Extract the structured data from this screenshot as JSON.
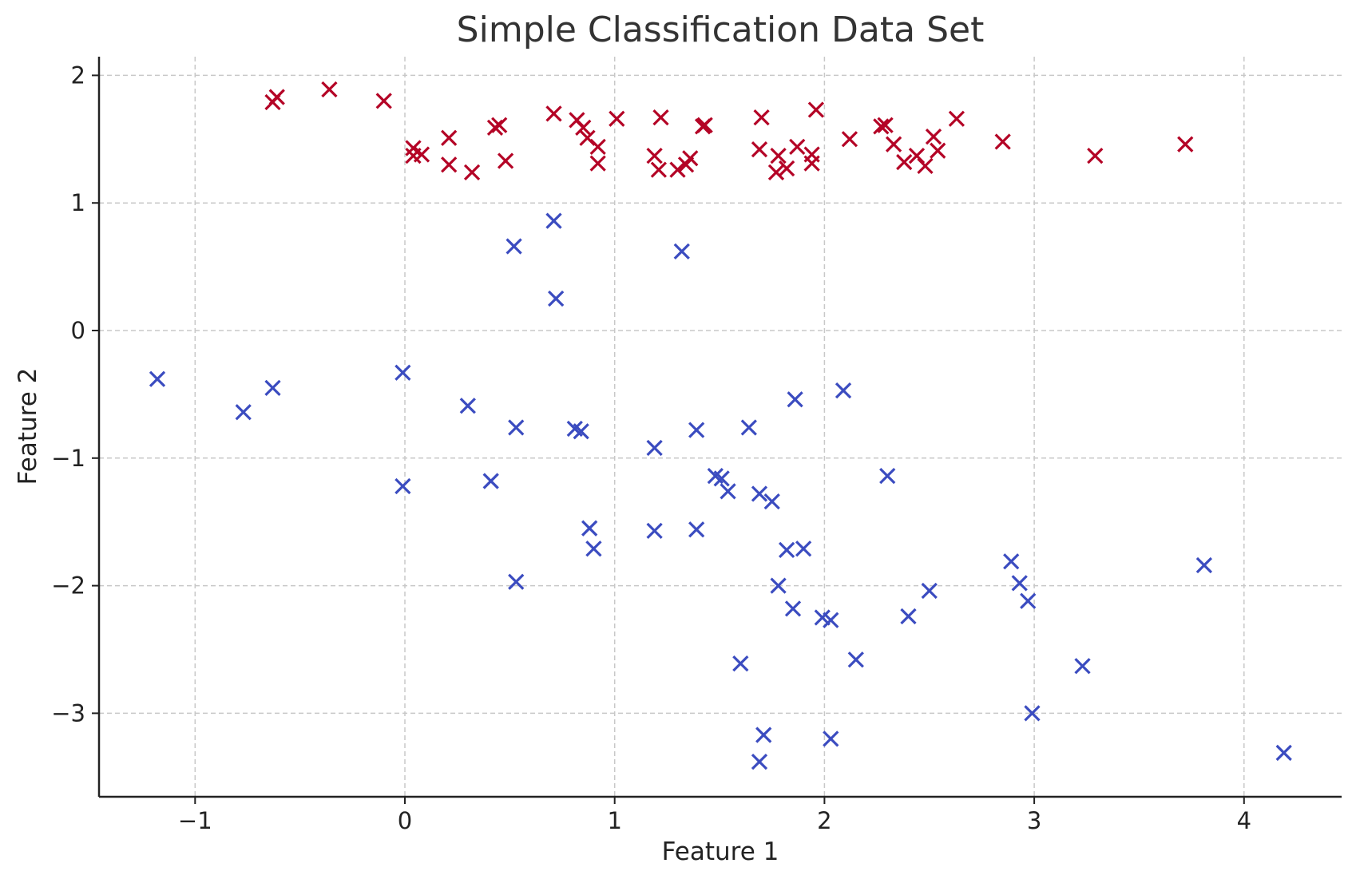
{
  "chart_data": {
    "type": "scatter",
    "title": "Simple Classification Data Set",
    "xlabel": "Feature 1",
    "ylabel": "Feature 2",
    "xlim": [
      -1.45,
      4.45
    ],
    "ylim": [
      -3.65,
      2.15
    ],
    "x_ticks": [
      -1,
      0,
      1,
      2,
      3,
      4
    ],
    "y_ticks": [
      -3,
      -2,
      -1,
      0,
      1,
      2
    ],
    "x_tick_labels": [
      "−1",
      "0",
      "1",
      "2",
      "3",
      "4"
    ],
    "y_tick_labels": [
      "−3",
      "−2",
      "−1",
      "0",
      "1",
      "2"
    ],
    "grid": true,
    "marker": "x",
    "series": [
      {
        "color": "#b40426",
        "points": [
          [
            -0.63,
            1.79
          ],
          [
            -0.61,
            1.83
          ],
          [
            -0.36,
            1.89
          ],
          [
            -0.1,
            1.8
          ],
          [
            0.04,
            1.43
          ],
          [
            0.04,
            1.37
          ],
          [
            0.08,
            1.38
          ],
          [
            0.21,
            1.51
          ],
          [
            0.21,
            1.3
          ],
          [
            0.32,
            1.24
          ],
          [
            0.43,
            1.59
          ],
          [
            0.45,
            1.61
          ],
          [
            0.48,
            1.33
          ],
          [
            0.71,
            1.7
          ],
          [
            0.82,
            1.65
          ],
          [
            0.85,
            1.59
          ],
          [
            0.87,
            1.51
          ],
          [
            0.92,
            1.44
          ],
          [
            0.92,
            1.31
          ],
          [
            1.01,
            1.66
          ],
          [
            1.19,
            1.37
          ],
          [
            1.21,
            1.26
          ],
          [
            1.22,
            1.67
          ],
          [
            1.3,
            1.26
          ],
          [
            1.34,
            1.3
          ],
          [
            1.36,
            1.35
          ],
          [
            1.42,
            1.6
          ],
          [
            1.43,
            1.61
          ],
          [
            1.69,
            1.42
          ],
          [
            1.7,
            1.67
          ],
          [
            1.77,
            1.24
          ],
          [
            1.78,
            1.37
          ],
          [
            1.82,
            1.27
          ],
          [
            1.87,
            1.44
          ],
          [
            1.94,
            1.38
          ],
          [
            1.94,
            1.31
          ],
          [
            1.96,
            1.73
          ],
          [
            2.12,
            1.5
          ],
          [
            2.27,
            1.6
          ],
          [
            2.29,
            1.61
          ],
          [
            2.33,
            1.46
          ],
          [
            2.38,
            1.32
          ],
          [
            2.44,
            1.37
          ],
          [
            2.48,
            1.29
          ],
          [
            2.52,
            1.52
          ],
          [
            2.54,
            1.41
          ],
          [
            2.63,
            1.66
          ],
          [
            2.85,
            1.48
          ],
          [
            3.29,
            1.37
          ],
          [
            3.72,
            1.46
          ]
        ]
      },
      {
        "color": "#3b4cc0",
        "points": [
          [
            -1.18,
            -0.38
          ],
          [
            -0.77,
            -0.64
          ],
          [
            -0.63,
            -0.45
          ],
          [
            -0.01,
            -0.33
          ],
          [
            -0.01,
            -1.22
          ],
          [
            0.3,
            -0.59
          ],
          [
            0.41,
            -1.18
          ],
          [
            0.52,
            0.66
          ],
          [
            0.53,
            -0.76
          ],
          [
            0.53,
            -1.97
          ],
          [
            0.71,
            0.86
          ],
          [
            0.72,
            0.25
          ],
          [
            0.81,
            -0.77
          ],
          [
            0.84,
            -0.79
          ],
          [
            0.88,
            -1.55
          ],
          [
            0.9,
            -1.71
          ],
          [
            1.19,
            -0.92
          ],
          [
            1.19,
            -1.57
          ],
          [
            1.32,
            0.62
          ],
          [
            1.39,
            -0.78
          ],
          [
            1.39,
            -1.56
          ],
          [
            1.48,
            -1.14
          ],
          [
            1.51,
            -1.16
          ],
          [
            1.54,
            -1.26
          ],
          [
            1.6,
            -2.61
          ],
          [
            1.64,
            -0.76
          ],
          [
            1.69,
            -1.28
          ],
          [
            1.69,
            -3.38
          ],
          [
            1.71,
            -3.17
          ],
          [
            1.75,
            -1.34
          ],
          [
            1.78,
            -2.0
          ],
          [
            1.82,
            -1.72
          ],
          [
            1.85,
            -2.18
          ],
          [
            1.86,
            -0.54
          ],
          [
            1.9,
            -1.71
          ],
          [
            1.99,
            -2.25
          ],
          [
            2.03,
            -2.27
          ],
          [
            2.03,
            -3.2
          ],
          [
            2.09,
            -0.47
          ],
          [
            2.15,
            -2.58
          ],
          [
            2.3,
            -1.14
          ],
          [
            2.4,
            -2.24
          ],
          [
            2.5,
            -2.04
          ],
          [
            2.89,
            -1.81
          ],
          [
            2.93,
            -1.98
          ],
          [
            2.97,
            -2.12
          ],
          [
            2.99,
            -3.0
          ],
          [
            3.23,
            -2.63
          ],
          [
            3.81,
            -1.84
          ],
          [
            4.19,
            -3.31
          ]
        ]
      }
    ]
  }
}
